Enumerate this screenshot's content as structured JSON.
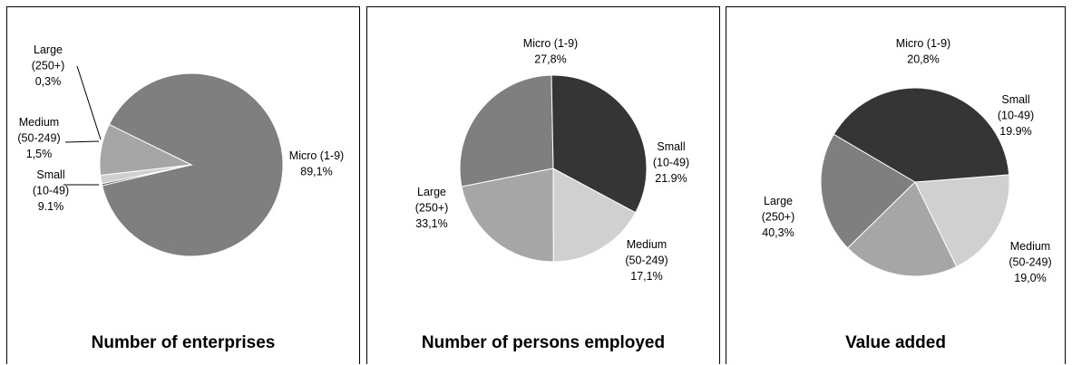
{
  "colors": {
    "Micro": "#7f7f7f",
    "Small": "#a6a6a6",
    "Medium": "#d0d0d0",
    "Large": "#353535"
  },
  "chart_data": [
    {
      "type": "pie",
      "title": "Number of enterprises",
      "slices": [
        {
          "category": "Micro",
          "value": 89.1,
          "label_lines": [
            "Micro (1-9)",
            "89,1%"
          ]
        },
        {
          "category": "Small",
          "value": 9.1,
          "label_lines": [
            "Small",
            "(10-49)",
            "9.1%"
          ]
        },
        {
          "category": "Medium",
          "value": 1.5,
          "label_lines": [
            "Medium",
            "(50-249)",
            "1,5%"
          ]
        },
        {
          "category": "Large",
          "value": 0.3,
          "label_lines": [
            "Large",
            "(250+)",
            "0,3%"
          ]
        }
      ]
    },
    {
      "type": "pie",
      "title": "Number of persons employed",
      "slices": [
        {
          "category": "Micro",
          "value": 27.8,
          "label_lines": [
            "Micro (1-9)",
            "27,8%"
          ]
        },
        {
          "category": "Small",
          "value": 21.9,
          "label_lines": [
            "Small",
            "(10-49)",
            "21.9%"
          ]
        },
        {
          "category": "Medium",
          "value": 17.1,
          "label_lines": [
            "Medium",
            "(50-249)",
            "17,1%"
          ]
        },
        {
          "category": "Large",
          "value": 33.1,
          "label_lines": [
            "Large",
            "(250+)",
            "33,1%"
          ]
        }
      ]
    },
    {
      "type": "pie",
      "title": "Value added",
      "slices": [
        {
          "category": "Micro",
          "value": 20.8,
          "label_lines": [
            "Micro (1-9)",
            "20,8%"
          ]
        },
        {
          "category": "Small",
          "value": 19.9,
          "label_lines": [
            "Small",
            "(10-49)",
            "19.9%"
          ]
        },
        {
          "category": "Medium",
          "value": 19.0,
          "label_lines": [
            "Medium",
            "(50-249)",
            "19,0%"
          ]
        },
        {
          "category": "Large",
          "value": 40.3,
          "label_lines": [
            "Large",
            "(250+)",
            "40,3%"
          ]
        }
      ]
    }
  ]
}
